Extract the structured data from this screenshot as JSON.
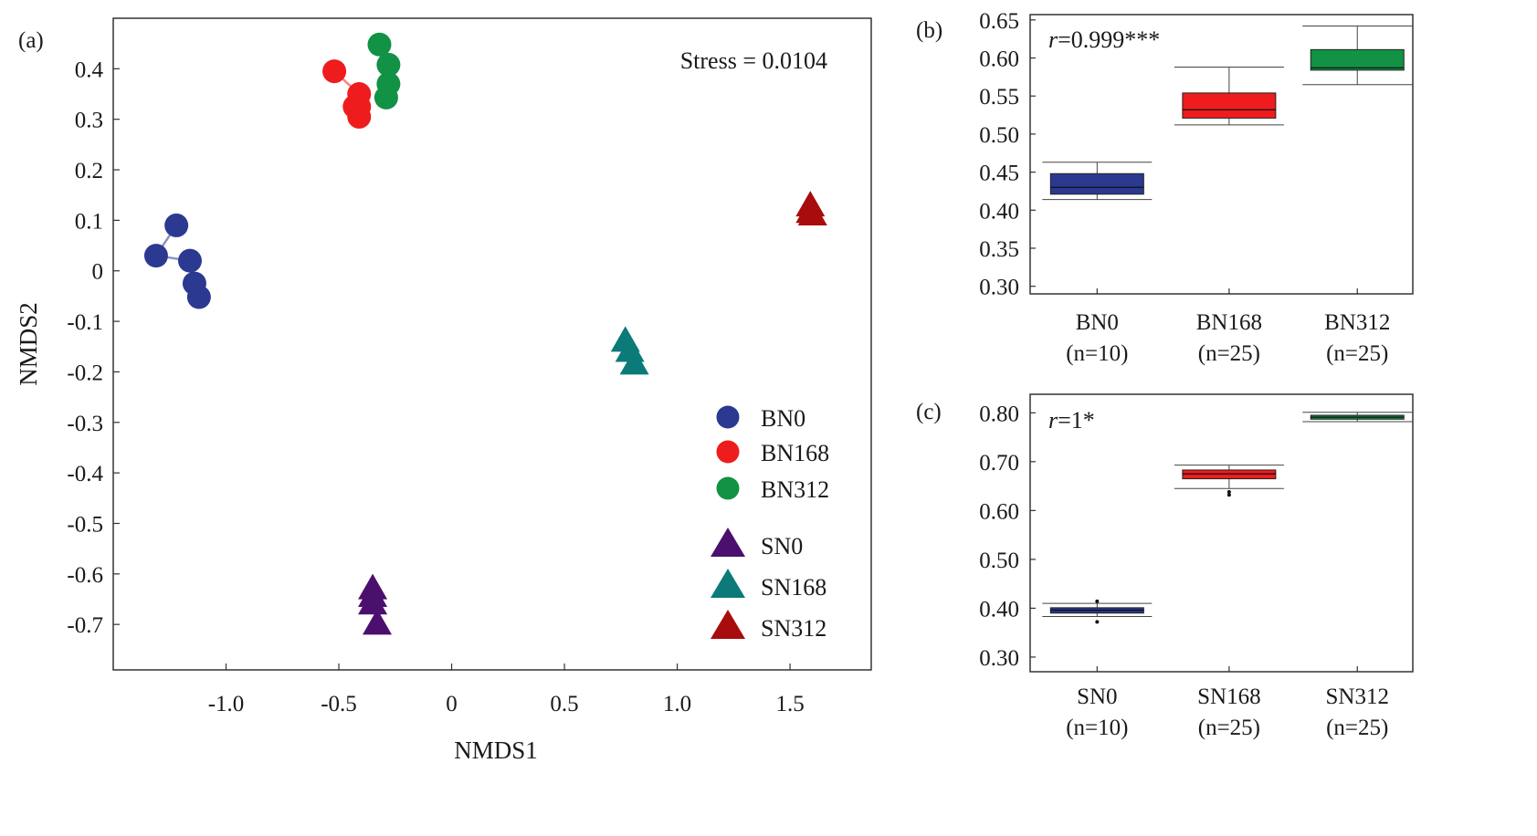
{
  "chart_data": [
    {
      "panel": "(a)",
      "type": "scatter",
      "xlabel": "NMDS1",
      "ylabel": "NMDS2",
      "annotation": "Stress = 0.0104",
      "xticks": [
        "-1.0",
        "-0.5",
        "0",
        "0.5",
        "1.0",
        "1.5"
      ],
      "xtick_values": [
        -1.0,
        -0.5,
        0,
        0.5,
        1.0,
        1.5
      ],
      "yticks": [
        "0.4",
        "0.3",
        "0.2",
        "0.1",
        "0",
        "-0.1",
        "-0.2",
        "-0.3",
        "-0.4",
        "-0.5",
        "-0.6",
        "-0.7"
      ],
      "ytick_values": [
        0.4,
        0.3,
        0.2,
        0.1,
        0,
        -0.1,
        -0.2,
        -0.3,
        -0.4,
        -0.5,
        -0.6,
        -0.7
      ],
      "xlim": [
        -1.5,
        1.86
      ],
      "ylim": [
        -0.79,
        0.5
      ],
      "legend_position": "right",
      "series": [
        {
          "name": "BN0",
          "marker": "circle",
          "color": "#2b3990",
          "connect": true,
          "points": [
            [
              -1.22,
              0.09
            ],
            [
              -1.31,
              0.03
            ],
            [
              -1.16,
              0.02
            ],
            [
              -1.14,
              -0.025
            ],
            [
              -1.12,
              -0.052
            ]
          ]
        },
        {
          "name": "BN168",
          "marker": "circle",
          "color": "#ee1c1c",
          "connect": true,
          "points": [
            [
              -0.52,
              0.395
            ],
            [
              -0.41,
              0.35
            ],
            [
              -0.43,
              0.325
            ],
            [
              -0.41,
              0.325
            ],
            [
              -0.41,
              0.305
            ]
          ]
        },
        {
          "name": "BN312",
          "marker": "circle",
          "color": "#119244",
          "connect": true,
          "points": [
            [
              -0.32,
              0.448
            ],
            [
              -0.28,
              0.408
            ],
            [
              -0.28,
              0.37
            ],
            [
              -0.29,
              0.343
            ]
          ]
        },
        {
          "name": "SN0",
          "marker": "triangle",
          "color": "#4b0f6e",
          "connect": false,
          "points": [
            [
              -0.35,
              -0.63
            ],
            [
              -0.35,
              -0.645
            ],
            [
              -0.35,
              -0.66
            ],
            [
              -0.33,
              -0.7
            ]
          ]
        },
        {
          "name": "SN168",
          "marker": "triangle",
          "color": "#0b7a78",
          "connect": false,
          "points": [
            [
              0.77,
              -0.14
            ],
            [
              0.79,
              -0.16
            ],
            [
              0.81,
              -0.185
            ]
          ]
        },
        {
          "name": "SN312",
          "marker": "triangle",
          "color": "#a80c0c",
          "connect": false,
          "points": [
            [
              1.59,
              0.128
            ],
            [
              1.59,
              0.115
            ],
            [
              1.6,
              0.11
            ]
          ]
        }
      ]
    },
    {
      "panel": "(b)",
      "type": "box",
      "annotation_r": "r",
      "annotation_rest": "=0.999***",
      "yticks": [
        "0.65",
        "0.60",
        "0.55",
        "0.50",
        "0.45",
        "0.40",
        "0.35",
        "0.30"
      ],
      "ytick_values": [
        0.65,
        0.6,
        0.55,
        0.5,
        0.45,
        0.4,
        0.35,
        0.3
      ],
      "ylim": [
        0.29,
        0.657
      ],
      "categories": [
        "BN0",
        "BN168",
        "BN312"
      ],
      "category_sublabels": [
        "(n=10)",
        "(n=25)",
        "(n=25)"
      ],
      "boxes": [
        {
          "name": "BN0",
          "color": "#2b3990",
          "min": 0.414,
          "q1": 0.421,
          "median": 0.43,
          "q3": 0.448,
          "max": 0.463
        },
        {
          "name": "BN168",
          "color": "#ee1c1c",
          "min": 0.512,
          "q1": 0.521,
          "median": 0.532,
          "q3": 0.554,
          "max": 0.588
        },
        {
          "name": "BN312",
          "color": "#119244",
          "min": 0.565,
          "q1": 0.584,
          "median": 0.587,
          "q3": 0.611,
          "max": 0.642
        }
      ]
    },
    {
      "panel": "(c)",
      "type": "box",
      "annotation_r": "r",
      "annotation_rest": "=1*",
      "yticks": [
        "0.80",
        "0.70",
        "0.60",
        "0.50",
        "0.40",
        "0.30"
      ],
      "ytick_values": [
        0.8,
        0.7,
        0.6,
        0.5,
        0.4,
        0.3
      ],
      "ylim": [
        0.27,
        0.838
      ],
      "categories": [
        "SN0",
        "SN168",
        "SN312"
      ],
      "category_sublabels": [
        "(n=10)",
        "(n=25)",
        "(n=25)"
      ],
      "boxes": [
        {
          "name": "SN0",
          "color": "#2b3990",
          "min": 0.383,
          "q1": 0.39,
          "median": 0.396,
          "q3": 0.401,
          "max": 0.41,
          "outliers": [
            0.372,
            0.414
          ]
        },
        {
          "name": "SN168",
          "color": "#ee1c1c",
          "min": 0.645,
          "q1": 0.665,
          "median": 0.675,
          "q3": 0.683,
          "max": 0.693,
          "outliers": [
            0.632,
            0.638
          ]
        },
        {
          "name": "SN312",
          "color": "#119244",
          "min": 0.782,
          "q1": 0.787,
          "median": 0.791,
          "q3": 0.795,
          "max": 0.801
        }
      ]
    }
  ]
}
